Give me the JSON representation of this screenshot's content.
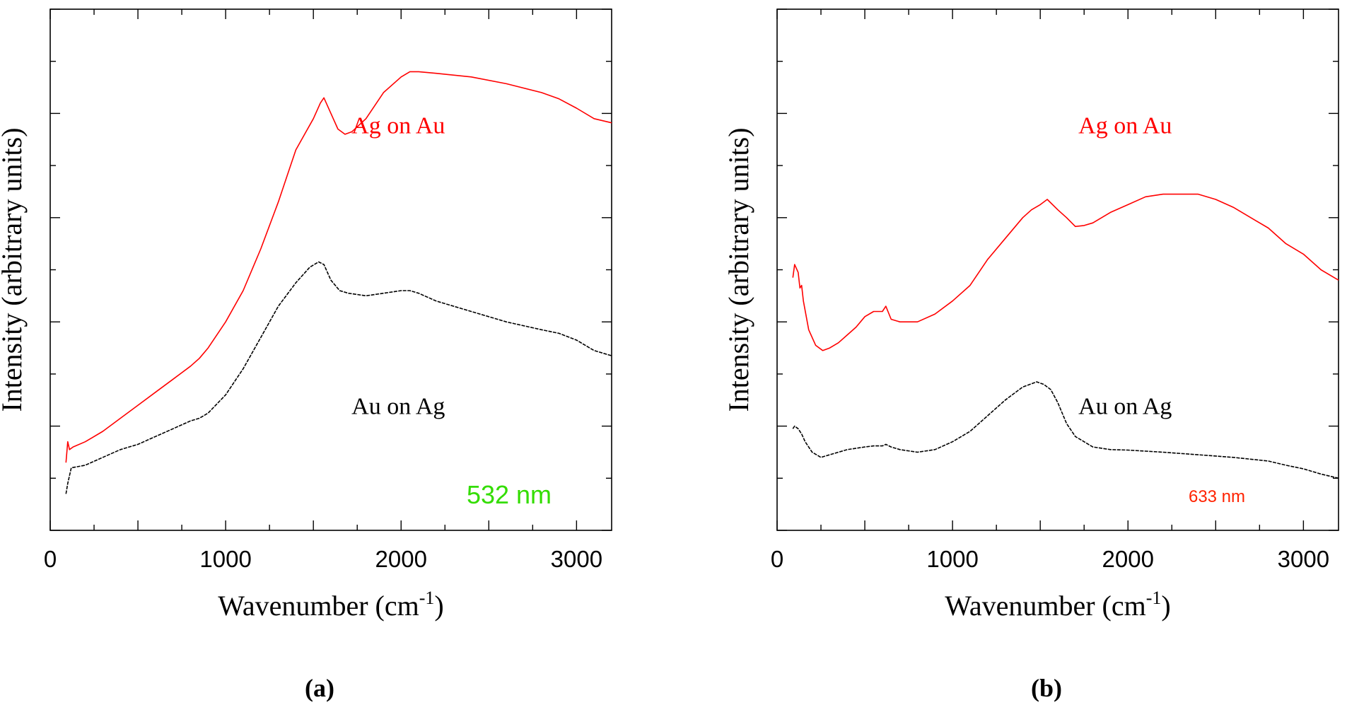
{
  "chart_data": [
    {
      "type": "line",
      "panel_label": "(a)",
      "xlabel": "Wavenumber (cm",
      "xlabel_superscript": "-1",
      "xlabel_suffix": ")",
      "ylabel": "Intensity (arbitrary units)",
      "xlim": [
        0,
        3200
      ],
      "ylim": [
        0,
        1
      ],
      "xticks": [
        0,
        1000,
        2000,
        3000
      ],
      "xtick_labels": [
        "0",
        "1000",
        "2000",
        "3000"
      ],
      "y_tick_labels_shown": false,
      "annotation": {
        "text": "532 nm",
        "color": "#33dd00"
      },
      "series": [
        {
          "name": "Ag on Au",
          "color": "#ff0000",
          "x": [
            90,
            100,
            110,
            130,
            200,
            300,
            400,
            500,
            600,
            700,
            800,
            850,
            900,
            1000,
            1100,
            1200,
            1300,
            1350,
            1400,
            1450,
            1500,
            1540,
            1560,
            1600,
            1640,
            1680,
            1720,
            1800,
            1900,
            2000,
            2050,
            2100,
            2200,
            2400,
            2600,
            2800,
            2900,
            3000,
            3100,
            3200
          ],
          "values": [
            0.13,
            0.17,
            0.155,
            0.16,
            0.17,
            0.19,
            0.215,
            0.24,
            0.265,
            0.29,
            0.315,
            0.33,
            0.35,
            0.4,
            0.46,
            0.54,
            0.63,
            0.68,
            0.73,
            0.76,
            0.79,
            0.82,
            0.83,
            0.8,
            0.77,
            0.76,
            0.765,
            0.79,
            0.84,
            0.87,
            0.88,
            0.88,
            0.877,
            0.87,
            0.857,
            0.84,
            0.828,
            0.81,
            0.79,
            0.782
          ]
        },
        {
          "name": "Au on Ag",
          "color": "#000000",
          "x": [
            90,
            100,
            120,
            200,
            300,
            400,
            500,
            600,
            700,
            800,
            850,
            900,
            1000,
            1100,
            1200,
            1300,
            1400,
            1480,
            1530,
            1560,
            1600,
            1650,
            1700,
            1800,
            1900,
            2000,
            2050,
            2100,
            2200,
            2400,
            2600,
            2800,
            2900,
            3000,
            3100,
            3200
          ],
          "values": [
            0.07,
            0.09,
            0.12,
            0.125,
            0.14,
            0.155,
            0.165,
            0.18,
            0.195,
            0.21,
            0.215,
            0.225,
            0.26,
            0.31,
            0.37,
            0.43,
            0.475,
            0.505,
            0.515,
            0.51,
            0.48,
            0.46,
            0.455,
            0.45,
            0.455,
            0.46,
            0.46,
            0.455,
            0.44,
            0.42,
            0.4,
            0.385,
            0.378,
            0.365,
            0.345,
            0.335
          ]
        }
      ]
    },
    {
      "type": "line",
      "panel_label": "(b)",
      "xlabel": "Wavenumber (cm",
      "xlabel_superscript": "-1",
      "xlabel_suffix": ")",
      "ylabel": "Intensity (arbitrary units)",
      "xlim": [
        0,
        3200
      ],
      "ylim": [
        0,
        1
      ],
      "xticks": [
        0,
        1000,
        2000,
        3000
      ],
      "xtick_labels": [
        "0",
        "1000",
        "2000",
        "3000"
      ],
      "y_tick_labels_shown": false,
      "annotation": {
        "text": "633 nm",
        "color": "#ff2200"
      },
      "series": [
        {
          "name": "Ag on Au",
          "color": "#ff0000",
          "x": [
            90,
            100,
            120,
            130,
            140,
            150,
            180,
            220,
            260,
            300,
            350,
            400,
            450,
            500,
            550,
            600,
            620,
            650,
            700,
            800,
            900,
            1000,
            1100,
            1200,
            1300,
            1400,
            1450,
            1500,
            1540,
            1600,
            1650,
            1700,
            1750,
            1800,
            1900,
            2000,
            2100,
            2200,
            2300,
            2400,
            2500,
            2600,
            2700,
            2800,
            2900,
            3000,
            3100,
            3200
          ],
          "values": [
            0.485,
            0.51,
            0.495,
            0.465,
            0.47,
            0.44,
            0.385,
            0.355,
            0.345,
            0.35,
            0.36,
            0.375,
            0.39,
            0.41,
            0.42,
            0.42,
            0.43,
            0.405,
            0.4,
            0.4,
            0.415,
            0.44,
            0.47,
            0.52,
            0.56,
            0.6,
            0.615,
            0.625,
            0.635,
            0.615,
            0.6,
            0.583,
            0.585,
            0.59,
            0.61,
            0.625,
            0.64,
            0.645,
            0.645,
            0.645,
            0.635,
            0.62,
            0.6,
            0.58,
            0.55,
            0.53,
            0.5,
            0.48
          ]
        },
        {
          "name": "Au on Ag",
          "color": "#000000",
          "x": [
            90,
            100,
            120,
            140,
            160,
            200,
            250,
            300,
            400,
            500,
            550,
            600,
            620,
            650,
            700,
            800,
            900,
            1000,
            1100,
            1200,
            1300,
            1400,
            1480,
            1520,
            1560,
            1600,
            1650,
            1700,
            1800,
            1900,
            2000,
            2100,
            2200,
            2400,
            2600,
            2800,
            2900,
            3000,
            3100,
            3200
          ],
          "values": [
            0.195,
            0.2,
            0.195,
            0.185,
            0.17,
            0.15,
            0.14,
            0.145,
            0.155,
            0.16,
            0.162,
            0.162,
            0.165,
            0.16,
            0.155,
            0.15,
            0.155,
            0.17,
            0.19,
            0.22,
            0.25,
            0.275,
            0.285,
            0.28,
            0.27,
            0.245,
            0.205,
            0.18,
            0.16,
            0.155,
            0.154,
            0.152,
            0.15,
            0.145,
            0.14,
            0.133,
            0.125,
            0.118,
            0.108,
            0.1
          ]
        }
      ]
    }
  ]
}
